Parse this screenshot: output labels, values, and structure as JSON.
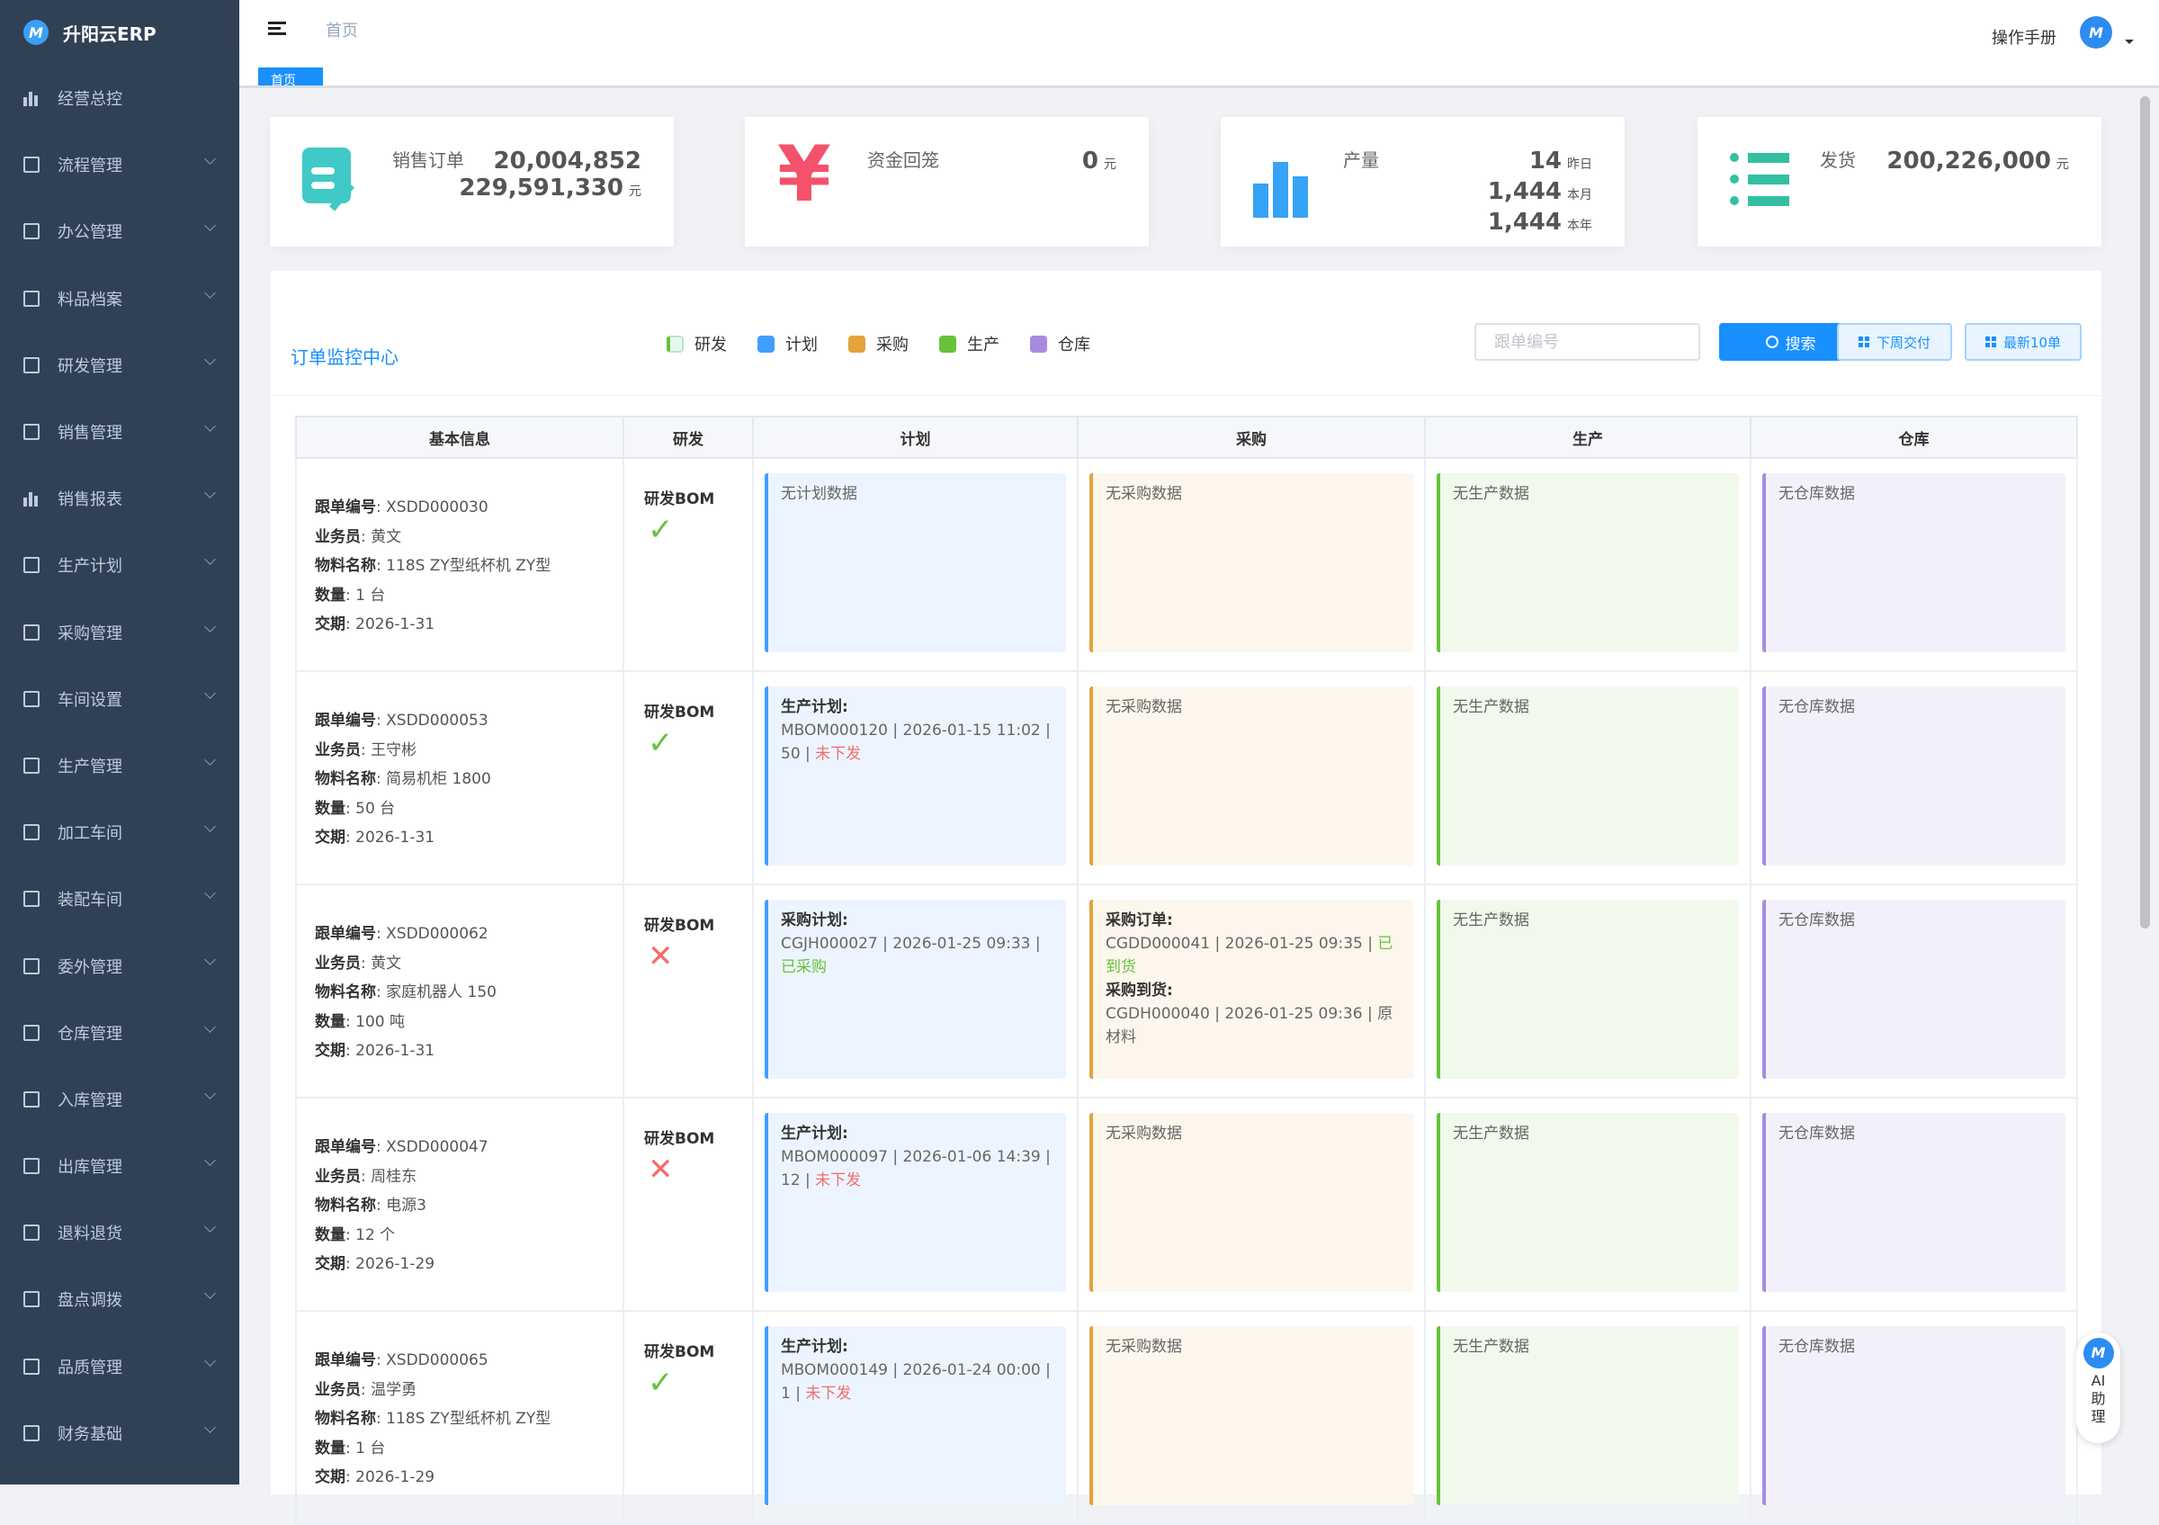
{
  "app": {
    "name": "升阳云ERP"
  },
  "sidebar": {
    "items": [
      {
        "label": "经营总控",
        "icon": "bar-chart-icon",
        "expandable": false
      },
      {
        "label": "流程管理",
        "icon": "flow-icon",
        "expandable": true
      },
      {
        "label": "办公管理",
        "icon": "office-icon",
        "expandable": true
      },
      {
        "label": "料品档案",
        "icon": "book-icon",
        "expandable": true
      },
      {
        "label": "研发管理",
        "icon": "rd-icon",
        "expandable": true
      },
      {
        "label": "销售管理",
        "icon": "doc-icon",
        "expandable": true
      },
      {
        "label": "销售报表",
        "icon": "bar-chart-icon",
        "expandable": true
      },
      {
        "label": "生产计划",
        "icon": "doc-icon",
        "expandable": true
      },
      {
        "label": "采购管理",
        "icon": "doc-icon",
        "expandable": true
      },
      {
        "label": "车间设置",
        "icon": "gear-icon",
        "expandable": true
      },
      {
        "label": "生产管理",
        "icon": "doc-icon",
        "expandable": true
      },
      {
        "label": "加工车间",
        "icon": "doc-icon",
        "expandable": true
      },
      {
        "label": "装配车间",
        "icon": "doc-icon",
        "expandable": true
      },
      {
        "label": "委外管理",
        "icon": "doc-icon",
        "expandable": true
      },
      {
        "label": "仓库管理",
        "icon": "book-icon",
        "expandable": true
      },
      {
        "label": "入库管理",
        "icon": "book-icon",
        "expandable": true
      },
      {
        "label": "出库管理",
        "icon": "book-icon",
        "expandable": true
      },
      {
        "label": "退料退货",
        "icon": "doc-icon",
        "expandable": true
      },
      {
        "label": "盘点调拨",
        "icon": "doc-icon",
        "expandable": true
      },
      {
        "label": "品质管理",
        "icon": "shield-icon",
        "expandable": true
      },
      {
        "label": "财务基础",
        "icon": "gear-icon",
        "expandable": true
      }
    ]
  },
  "header": {
    "breadcrumb": "首页",
    "manual": "操作手册"
  },
  "tags": {
    "active": "首页"
  },
  "cards": [
    {
      "label": "销售订单",
      "icon": "order-edit-icon",
      "color": "#40c9c6",
      "values": [
        {
          "v": "20,004,852",
          "u": ""
        },
        {
          "v": "229,591,330",
          "u": "元"
        }
      ]
    },
    {
      "label": "资金回笼",
      "icon": "yen-icon",
      "color": "#f4516c",
      "values": [
        {
          "v": "0",
          "u": "元"
        }
      ]
    },
    {
      "label": "产量",
      "icon": "bar-chart-icon",
      "color": "#36a3f7",
      "values": [
        {
          "v": "14",
          "u": "昨日"
        },
        {
          "v": "1,444",
          "u": "本月"
        },
        {
          "v": "1,444",
          "u": "本年"
        }
      ]
    },
    {
      "label": "发货",
      "icon": "list-icon",
      "color": "#34bfa3",
      "values": [
        {
          "v": "200,226,000",
          "u": "元"
        }
      ]
    }
  ],
  "panel": {
    "title": "订单监控中心",
    "legend": [
      {
        "label": "研发",
        "color": "#e8f7ee"
      },
      {
        "label": "计划",
        "color": "#409eff"
      },
      {
        "label": "采购",
        "color": "#e6a23c"
      },
      {
        "label": "生产",
        "color": "#67c23a"
      },
      {
        "label": "仓库",
        "color": "#a88be0"
      }
    ],
    "search_placeholder": "跟单编号",
    "search_label": "搜索",
    "next_week_label": "下周交付",
    "latest_label": "最新10单",
    "columns": [
      "基本信息",
      "研发",
      "计划",
      "采购",
      "生产",
      "仓库"
    ],
    "field_labels": {
      "no": "跟单编号",
      "sales": "业务员",
      "item": "物料名称",
      "qty": "数量",
      "due": "交期"
    },
    "rows": [
      {
        "no": "XSDD000030",
        "sales": "黄文",
        "item": "118S ZY型纸杯机 ZY型",
        "qty": "1 台",
        "due": "2026-1-31",
        "rd": "研发BOM",
        "rd_ok": true,
        "plan": [],
        "plan_empty": "无计划数据",
        "purchase": [],
        "purchase_empty": "无采购数据",
        "prod_empty": "无生产数据",
        "wh_empty": "无仓库数据"
      },
      {
        "no": "XSDD000053",
        "sales": "王守彬",
        "item": "简易机柜 1800",
        "qty": "50 台",
        "due": "2026-1-31",
        "rd": "研发BOM",
        "rd_ok": true,
        "plan": [
          {
            "title": "生产计划:",
            "text": "MBOM000120 | 2026-01-15 11:02 | 50 | ",
            "status": "未下发",
            "status_color": "#f56c6c"
          }
        ],
        "purchase": [],
        "purchase_empty": "无采购数据",
        "prod_empty": "无生产数据",
        "wh_empty": "无仓库数据"
      },
      {
        "no": "XSDD000062",
        "sales": "黄文",
        "item": "家庭机器人 150",
        "qty": "100 吨",
        "due": "2026-1-31",
        "rd": "研发BOM",
        "rd_ok": false,
        "plan": [
          {
            "title": "采购计划:",
            "text": "CGJH000027 | 2026-01-25 09:33 | ",
            "status": "已采购",
            "status_color": "#67c23a"
          }
        ],
        "purchase": [
          {
            "title": "采购订单:",
            "text": "CGDD000041 | 2026-01-25 09:35 | ",
            "status": "已到货",
            "status_color": "#67c23a"
          },
          {
            "title": "采购到货:",
            "text": "CGDH000040 | 2026-01-25 09:36 | 原材料",
            "status": "",
            "status_color": ""
          }
        ],
        "prod_empty": "无生产数据",
        "wh_empty": "无仓库数据"
      },
      {
        "no": "XSDD000047",
        "sales": "周桂东",
        "item": "电源3",
        "qty": "12 个",
        "due": "2026-1-29",
        "rd": "研发BOM",
        "rd_ok": false,
        "plan": [
          {
            "title": "生产计划:",
            "text": "MBOM000097 | 2026-01-06 14:39 | 12 | ",
            "status": "未下发",
            "status_color": "#f56c6c"
          }
        ],
        "purchase": [],
        "purchase_empty": "无采购数据",
        "prod_empty": "无生产数据",
        "wh_empty": "无仓库数据"
      },
      {
        "no": "XSDD000065",
        "sales": "温学勇",
        "item": "118S ZY型纸杯机 ZY型",
        "qty": "1 台",
        "due": "2026-1-29",
        "rd": "研发BOM",
        "rd_ok": true,
        "plan": [
          {
            "title": "生产计划:",
            "text": "MBOM000149 | 2026-01-24 00:00 | 1 | ",
            "status": "未下发",
            "status_color": "#f56c6c"
          }
        ],
        "purchase": [],
        "purchase_empty": "无采购数据",
        "prod_empty": "无生产数据",
        "wh_empty": "无仓库数据"
      }
    ]
  },
  "ai": {
    "label": "AI助理"
  }
}
